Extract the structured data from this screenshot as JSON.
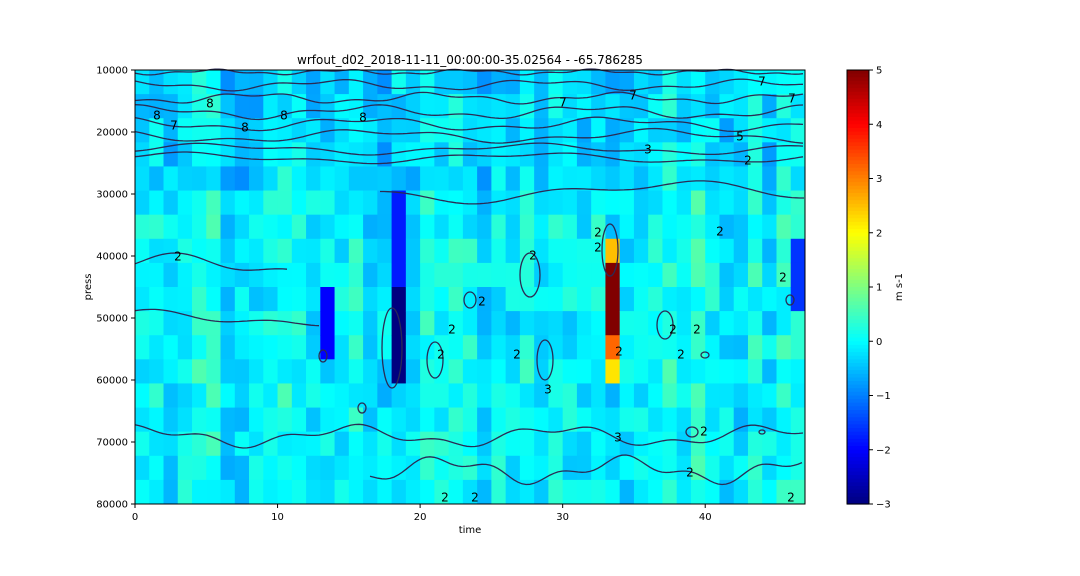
{
  "chart_data": {
    "type": "heatmap",
    "title": "wrfout_d02_2018-11-11_00:00:00-35.02564 - -65.786285",
    "xlabel": "time",
    "ylabel": "press",
    "xlim": [
      0,
      47
    ],
    "ylim": [
      80000,
      10000
    ],
    "y_inverted": true,
    "x_ticks": [
      0,
      10,
      20,
      30,
      40
    ],
    "y_ticks": [
      10000,
      20000,
      30000,
      40000,
      50000,
      60000,
      70000,
      80000
    ],
    "colormap": "jet",
    "colorbar": {
      "label": "m s-1",
      "vmin": -3,
      "vmax": 5,
      "ticks": [
        -3,
        -2,
        -1,
        0,
        1,
        2,
        3,
        4,
        5
      ]
    },
    "features": [
      {
        "x_range": [
          17.5,
          18.5
        ],
        "y_range": [
          44000,
          60000
        ],
        "value": -3
      },
      {
        "x_range": [
          17.5,
          18.5
        ],
        "y_range": [
          28000,
          44000
        ],
        "value": -1.8
      },
      {
        "x_range": [
          13,
          14
        ],
        "y_range": [
          44000,
          56000
        ],
        "value": -2
      },
      {
        "x_range": [
          33,
          34
        ],
        "y_range": [
          40000,
          52000
        ],
        "value": 5
      },
      {
        "x_range": [
          33,
          34
        ],
        "y_range": [
          36000,
          40000
        ],
        "value": 2.5
      },
      {
        "x_range": [
          33,
          34
        ],
        "y_range": [
          52000,
          56000
        ],
        "value": 3.2
      },
      {
        "x_range": [
          33,
          34
        ],
        "y_range": [
          56000,
          60000
        ],
        "value": 2.2
      },
      {
        "x_range": [
          46,
          47
        ],
        "y_range": [
          34000,
          48000
        ],
        "value": -1.6
      }
    ],
    "contour_labels": [
      "8",
      "8",
      "8",
      "8",
      "7",
      "8",
      "7",
      "7",
      "7",
      "7",
      "5",
      "3",
      "2",
      "2",
      "2",
      "2",
      "2",
      "2",
      "2",
      "2",
      "2",
      "2",
      "2",
      "3",
      "2",
      "2",
      "2",
      "3",
      "2",
      "2",
      "2",
      "2",
      "2",
      "2"
    ]
  }
}
